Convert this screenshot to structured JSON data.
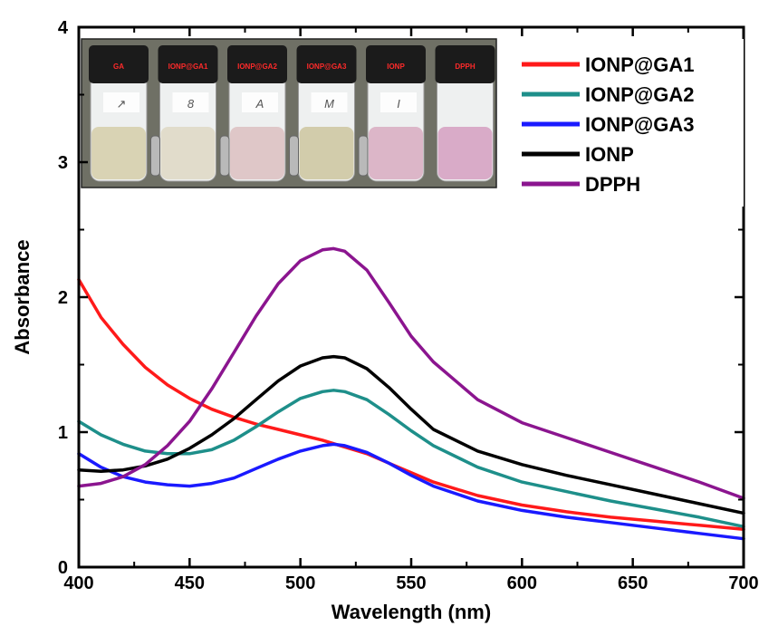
{
  "chart_data": {
    "type": "line",
    "xlabel": "Wavelength (nm)",
    "ylabel": "Absorbance",
    "xlim": [
      400,
      700
    ],
    "ylim": [
      0,
      4
    ],
    "x_ticks": [
      "400",
      "450",
      "500",
      "550",
      "600",
      "650",
      "700"
    ],
    "y_ticks": [
      "0",
      "1",
      "2",
      "3",
      "4"
    ],
    "legend_position": "top-right",
    "series": [
      {
        "name": "IONP@GA1",
        "color": "#ff1a1a",
        "x": [
          400,
          410,
          420,
          430,
          440,
          450,
          460,
          470,
          480,
          490,
          500,
          510,
          520,
          530,
          540,
          550,
          560,
          580,
          600,
          620,
          640,
          660,
          680,
          700
        ],
        "y": [
          2.13,
          1.85,
          1.65,
          1.48,
          1.35,
          1.25,
          1.17,
          1.11,
          1.06,
          1.02,
          0.98,
          0.94,
          0.89,
          0.84,
          0.77,
          0.7,
          0.63,
          0.53,
          0.46,
          0.41,
          0.37,
          0.34,
          0.31,
          0.28
        ]
      },
      {
        "name": "IONP@GA2",
        "color": "#1e8f8a",
        "x": [
          400,
          410,
          420,
          430,
          440,
          450,
          460,
          470,
          480,
          490,
          500,
          510,
          515,
          520,
          530,
          540,
          550,
          560,
          580,
          600,
          620,
          640,
          660,
          680,
          700
        ],
        "y": [
          1.08,
          0.98,
          0.91,
          0.86,
          0.84,
          0.84,
          0.87,
          0.94,
          1.04,
          1.15,
          1.25,
          1.3,
          1.31,
          1.3,
          1.24,
          1.13,
          1.01,
          0.9,
          0.74,
          0.63,
          0.56,
          0.49,
          0.43,
          0.37,
          0.3
        ]
      },
      {
        "name": "IONP@GA3",
        "color": "#1a1aff",
        "x": [
          400,
          410,
          420,
          430,
          440,
          450,
          460,
          470,
          480,
          490,
          500,
          510,
          515,
          520,
          530,
          540,
          550,
          560,
          580,
          600,
          620,
          640,
          660,
          680,
          700
        ],
        "y": [
          0.84,
          0.74,
          0.67,
          0.63,
          0.61,
          0.6,
          0.62,
          0.66,
          0.73,
          0.8,
          0.86,
          0.9,
          0.91,
          0.9,
          0.85,
          0.77,
          0.68,
          0.6,
          0.49,
          0.42,
          0.37,
          0.33,
          0.29,
          0.25,
          0.21
        ]
      },
      {
        "name": "IONP",
        "color": "#000000",
        "x": [
          400,
          410,
          420,
          430,
          440,
          450,
          460,
          470,
          480,
          490,
          500,
          510,
          515,
          520,
          530,
          540,
          550,
          560,
          580,
          600,
          620,
          640,
          660,
          680,
          700
        ],
        "y": [
          0.72,
          0.71,
          0.72,
          0.75,
          0.8,
          0.88,
          0.98,
          1.1,
          1.24,
          1.38,
          1.49,
          1.55,
          1.56,
          1.55,
          1.47,
          1.33,
          1.17,
          1.02,
          0.86,
          0.76,
          0.68,
          0.61,
          0.54,
          0.47,
          0.4
        ]
      },
      {
        "name": "DPPH",
        "color": "#8b158f",
        "x": [
          400,
          410,
          420,
          430,
          440,
          450,
          460,
          470,
          480,
          490,
          500,
          510,
          515,
          520,
          530,
          540,
          550,
          560,
          580,
          600,
          620,
          640,
          660,
          680,
          700
        ],
        "y": [
          0.6,
          0.62,
          0.67,
          0.76,
          0.9,
          1.08,
          1.32,
          1.59,
          1.86,
          2.1,
          2.27,
          2.35,
          2.36,
          2.34,
          2.2,
          1.96,
          1.71,
          1.52,
          1.24,
          1.07,
          0.96,
          0.85,
          0.74,
          0.63,
          0.51
        ]
      }
    ]
  },
  "inset": {
    "caption_colors": {
      "cap": "#1b1b1b",
      "label": "#ff2a2a"
    },
    "vials": [
      {
        "cap_label": "GA",
        "note": "↗",
        "liquid": "#d9d3b4"
      },
      {
        "cap_label": "IONP@GA1",
        "note": "8",
        "liquid": "#e1dccb"
      },
      {
        "cap_label": "IONP@GA2",
        "note": "A",
        "liquid": "#dfc7c8"
      },
      {
        "cap_label": "IONP@GA3",
        "note": "M",
        "liquid": "#d2ccab"
      },
      {
        "cap_label": "IONP",
        "note": "I",
        "liquid": "#dcb6c8"
      },
      {
        "cap_label": "DPPH",
        "note": "",
        "liquid": "#d9abc8"
      }
    ]
  }
}
